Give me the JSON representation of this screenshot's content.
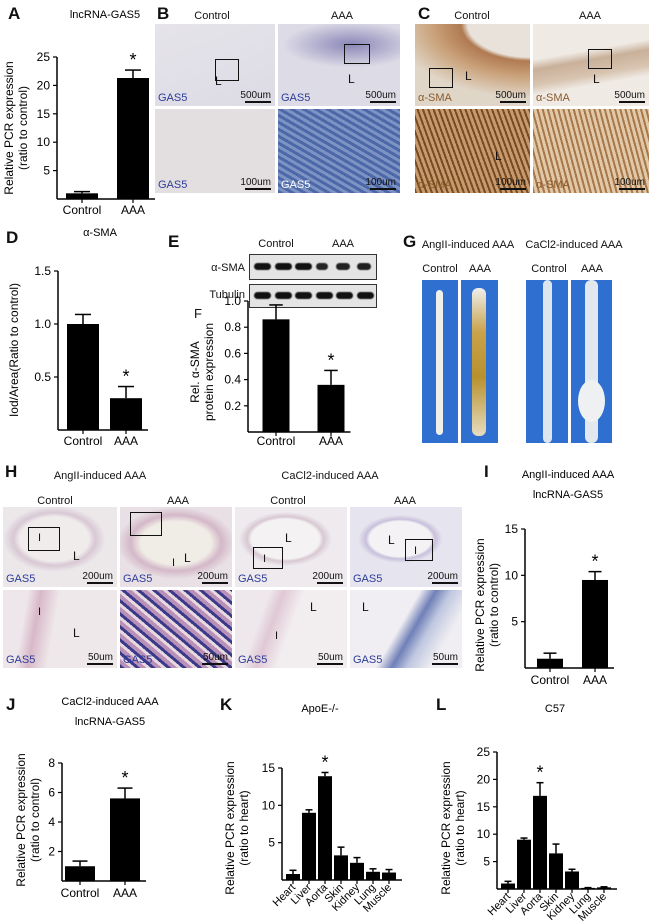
{
  "panels": {
    "A": "A",
    "B": "B",
    "C": "C",
    "D": "D",
    "E": "E",
    "F": "F",
    "G": "G",
    "H": "H",
    "I": "I",
    "J": "J",
    "K": "K",
    "L": "L"
  },
  "B": {
    "control": "Control",
    "aaa": "AAA",
    "stain": "GAS5",
    "lumen": "L",
    "scale_low": "500um",
    "scale_high": "100um"
  },
  "C": {
    "control": "Control",
    "aaa": "AAA",
    "stain": "α-SMA",
    "lumen": "L",
    "scale_low": "500um",
    "scale_high": "100um"
  },
  "E": {
    "control": "Control",
    "aaa": "AAA",
    "row1": "α-SMA",
    "row2": "Tubulin"
  },
  "G": {
    "group1": "AngII-induced AAA",
    "group2": "CaCl2-induced AAA",
    "control": "Control",
    "aaa": "AAA"
  },
  "H": {
    "group1": "AngII-induced AAA",
    "group2": "CaCl2-induced AAA",
    "control": "Control",
    "aaa": "AAA",
    "stain": "GAS5",
    "lumen": "L",
    "intima": "I",
    "scale_low": "200um",
    "scale_high": "50um"
  },
  "colors": {
    "bar": "#000000",
    "he_blue": "#2f6fd0",
    "gas5_stain": "#3b3f9a",
    "sma_stain": "#8a5a2b"
  },
  "chart_data": [
    {
      "id": "A",
      "type": "bar",
      "title": "lncRNA-GAS5",
      "ylabel": "Relative PCR expression\n(ratio to control)",
      "categories": [
        "Control",
        "AAA"
      ],
      "values": [
        1.0,
        21.3
      ],
      "errors": [
        0.3,
        1.4
      ],
      "significant": [
        false,
        true
      ],
      "ylim": [
        0,
        25
      ],
      "yticks": [
        "5",
        "10",
        "15",
        "20",
        "25"
      ],
      "marker": "*"
    },
    {
      "id": "D",
      "type": "bar",
      "title": "α-SMA",
      "ylabel": "Iod/Area(Ratio to control)",
      "categories": [
        "Control",
        "AAA"
      ],
      "values": [
        1.0,
        0.3
      ],
      "errors": [
        0.09,
        0.11
      ],
      "significant": [
        false,
        true
      ],
      "ylim": [
        0,
        1.5
      ],
      "yticks": [
        "0.5",
        "1.0",
        "1.5"
      ],
      "marker": "*"
    },
    {
      "id": "F",
      "type": "bar",
      "title": "",
      "ylabel": "Rel. α-SMA\nprotein expression",
      "categories": [
        "Control",
        "AAA"
      ],
      "values": [
        0.86,
        0.36
      ],
      "errors": [
        0.11,
        0.11
      ],
      "significant": [
        false,
        true
      ],
      "ylim": [
        0,
        1.0
      ],
      "yticks": [
        "0.2",
        "0.4",
        "0.6",
        "0.8",
        "1.0"
      ],
      "marker": "*"
    },
    {
      "id": "I",
      "type": "bar",
      "title": "AngII-induced AAA\nlncRNA-GAS5",
      "ylabel": "Relative PCR expression\n(ratio to control)",
      "categories": [
        "Control",
        "AAA"
      ],
      "values": [
        1.0,
        9.5
      ],
      "errors": [
        0.6,
        0.9
      ],
      "significant": [
        false,
        true
      ],
      "ylim": [
        0,
        15
      ],
      "yticks": [
        "5",
        "10",
        "15"
      ],
      "marker": "*"
    },
    {
      "id": "J",
      "type": "bar",
      "title": "CaCl2-induced AAA\nlncRNA-GAS5",
      "ylabel": "Relative PCR expression\n(ratio to control)",
      "categories": [
        "Control",
        "AAA"
      ],
      "values": [
        1.0,
        5.6
      ],
      "errors": [
        0.35,
        0.7
      ],
      "significant": [
        false,
        true
      ],
      "ylim": [
        0,
        8
      ],
      "yticks": [
        "2",
        "4",
        "6",
        "8"
      ],
      "marker": "*"
    },
    {
      "id": "K",
      "type": "bar",
      "title": "ApoE-/-",
      "ylabel": "Relative PCR expression\n(ratio to heart)",
      "categories": [
        "Heart",
        "Liver",
        "Aorta",
        "Skin",
        "Kidney",
        "Lung",
        "Muscle"
      ],
      "values": [
        0.8,
        9.0,
        13.9,
        3.3,
        2.3,
        1.1,
        1.0
      ],
      "errors": [
        0.5,
        0.4,
        0.5,
        1.1,
        0.7,
        0.4,
        0.4
      ],
      "significant": [
        false,
        false,
        true,
        false,
        false,
        false,
        false
      ],
      "ylim": [
        0,
        15
      ],
      "yticks": [
        "5",
        "10",
        "15"
      ],
      "marker": "*"
    },
    {
      "id": "L",
      "type": "bar",
      "title": "C57",
      "ylabel": "Relative PCR expression\n(ratio to heart)",
      "categories": [
        "Heart",
        "Liver",
        "Aorta",
        "Skin",
        "Kidney",
        "Lung",
        "Muscle"
      ],
      "values": [
        1.0,
        9.0,
        17.0,
        6.5,
        3.2,
        0.2,
        0.3
      ],
      "errors": [
        0.4,
        0.3,
        2.4,
        1.7,
        0.4,
        0.05,
        0.1
      ],
      "significant": [
        false,
        false,
        true,
        false,
        false,
        false,
        false
      ],
      "ylim": [
        0,
        25
      ],
      "yticks": [
        "5",
        "10",
        "15",
        "20",
        "25"
      ],
      "marker": "*"
    }
  ]
}
